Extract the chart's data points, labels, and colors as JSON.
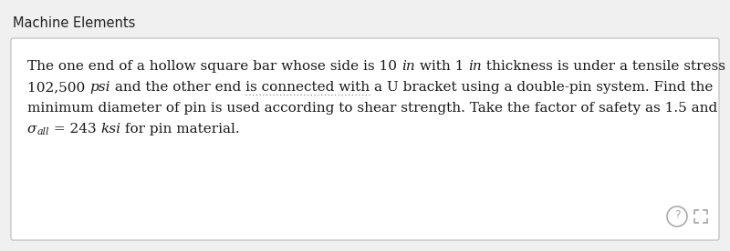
{
  "title": "Machine Elements",
  "title_fontsize": 10.5,
  "title_color": "#222222",
  "background_color": "#f0f0f0",
  "box_background": "#ffffff",
  "box_edge_color": "#bbbbbb",
  "text_fontsize": 11.0,
  "text_color": "#1a1a1a",
  "figsize": [
    8.0,
    2.76
  ],
  "dpi": 100,
  "line1_parts": [
    [
      "The one end of a hollow square bar whose side is 10 ",
      "normal"
    ],
    [
      "in",
      "italic"
    ],
    [
      " with 1 ",
      "normal"
    ],
    [
      "in",
      "italic"
    ],
    [
      " thickness is under a tensile stress",
      "normal"
    ]
  ],
  "line2_parts": [
    [
      "102,500 ",
      "normal"
    ],
    [
      "psi",
      "italic"
    ],
    [
      " and the other end is connected with a U bracket using a double-pin system. Find the",
      "normal"
    ]
  ],
  "line3": "minimum diameter of pin is used according to shear strength. Take the factor of safety as 1.5 and",
  "line4_parts": [
    [
      "σ",
      "italic_main"
    ],
    [
      "all",
      "italic_sub"
    ],
    [
      " = 243 ",
      "normal"
    ],
    [
      "ksi",
      "italic"
    ],
    [
      " for pin material.",
      "normal"
    ]
  ],
  "underline_text": "is connected with",
  "icon_color": "#aaaaaa"
}
